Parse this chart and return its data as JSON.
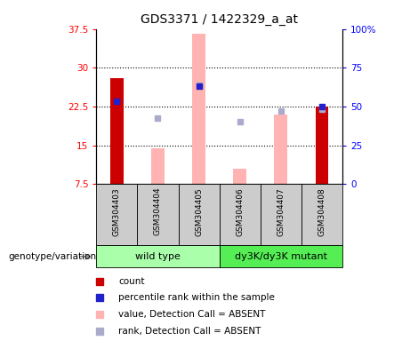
{
  "title": "GDS3371 / 1422329_a_at",
  "samples": [
    "GSM304403",
    "GSM304404",
    "GSM304405",
    "GSM304406",
    "GSM304407",
    "GSM304408"
  ],
  "ylim_left": [
    7.5,
    37.5
  ],
  "ylim_right": [
    0,
    100
  ],
  "yticks_left": [
    7.5,
    15.0,
    22.5,
    30.0,
    37.5
  ],
  "ytick_labels_left": [
    "7.5",
    "15",
    "22.5",
    "30",
    "37.5"
  ],
  "yticks_right": [
    0,
    25,
    50,
    75,
    100
  ],
  "ytick_labels_right": [
    "0",
    "25",
    "50",
    "75",
    "100%"
  ],
  "red_bars": {
    "GSM304403": 28.0,
    "GSM304408": 22.5
  },
  "pink_bars": {
    "GSM304404": 14.5,
    "GSM304405": 36.5,
    "GSM304406": 10.5,
    "GSM304407": 21.0
  },
  "blue_squares_left": {
    "GSM304403": 23.5,
    "GSM304405": 26.5,
    "GSM304408": 22.5
  },
  "lavender_squares_pct": {
    "GSM304404": 42.5,
    "GSM304405": 63.5,
    "GSM304406": 40.0,
    "GSM304407": 47.0,
    "GSM304408": 48.5
  },
  "red_bar_color": "#cc0000",
  "pink_bar_color": "#ffb3b3",
  "blue_sq_color": "#2222cc",
  "lavender_sq_color": "#aaaacc",
  "group_wt_color": "#aaffaa",
  "group_mut_color": "#55ee55",
  "grid_lines": [
    15.0,
    22.5,
    30.0
  ],
  "legend_items": [
    {
      "label": "count",
      "color": "#cc0000"
    },
    {
      "label": "percentile rank within the sample",
      "color": "#2222cc"
    },
    {
      "label": "value, Detection Call = ABSENT",
      "color": "#ffb3b3"
    },
    {
      "label": "rank, Detection Call = ABSENT",
      "color": "#aaaacc"
    }
  ],
  "genotype_label": "genotype/variation",
  "wt_label": "wild type",
  "mut_label": "dy3K/dy3K mutant"
}
